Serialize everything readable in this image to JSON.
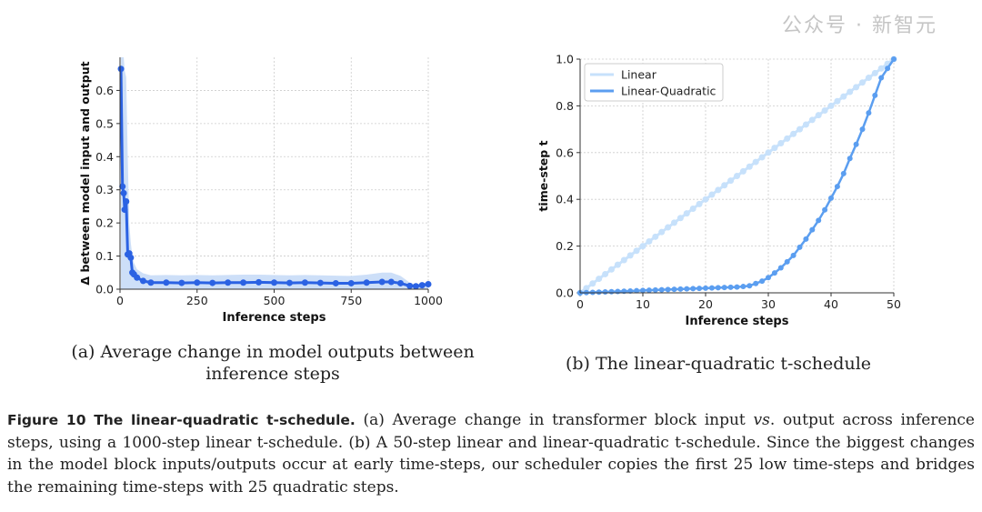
{
  "chart_data": [
    {
      "type": "line",
      "xlabel": "Inference steps",
      "ylabel": "Δ between model input and output",
      "xlim": [
        0,
        1000
      ],
      "ylim": [
        0,
        0.7
      ],
      "xticks": [
        "0",
        "250",
        "500",
        "750",
        "1000"
      ],
      "yticks": [
        "0.0",
        "0.1",
        "0.2",
        "0.3",
        "0.4",
        "0.5",
        "0.6"
      ],
      "grid": true,
      "color": "#2b62e3",
      "band_color": "#c8dbf7",
      "series": [
        {
          "x": [
            3,
            8,
            12,
            15,
            20,
            25,
            30,
            35,
            40,
            45,
            55,
            75,
            100,
            150,
            200,
            250,
            300,
            350,
            400,
            450,
            500,
            550,
            600,
            650,
            700,
            750,
            800,
            850,
            880,
            910,
            940,
            960,
            980,
            1000
          ],
          "y": [
            0.665,
            0.31,
            0.29,
            0.24,
            0.265,
            0.105,
            0.108,
            0.095,
            0.05,
            0.045,
            0.035,
            0.025,
            0.02,
            0.02,
            0.019,
            0.02,
            0.019,
            0.02,
            0.02,
            0.021,
            0.02,
            0.019,
            0.02,
            0.019,
            0.018,
            0.018,
            0.02,
            0.022,
            0.022,
            0.018,
            0.01,
            0.009,
            0.012,
            0.015
          ],
          "upper": [
            0.7,
            0.7,
            0.7,
            0.66,
            0.64,
            0.4,
            0.2,
            0.14,
            0.1,
            0.08,
            0.06,
            0.048,
            0.042,
            0.043,
            0.042,
            0.043,
            0.042,
            0.043,
            0.044,
            0.044,
            0.043,
            0.042,
            0.043,
            0.042,
            0.041,
            0.04,
            0.044,
            0.05,
            0.05,
            0.04,
            0.02,
            0.014,
            0.017,
            0.02
          ]
        }
      ]
    },
    {
      "type": "line",
      "xlabel": "Inference steps",
      "ylabel": "time-step t",
      "xlim": [
        0,
        50
      ],
      "ylim": [
        0,
        1
      ],
      "xticks": [
        "0",
        "10",
        "20",
        "30",
        "40",
        "50"
      ],
      "yticks": [
        "0.0",
        "0.2",
        "0.4",
        "0.6",
        "0.8",
        "1.0"
      ],
      "grid": true,
      "legend": "top-left",
      "series": [
        {
          "name": "Linear",
          "color": "#c7e1fb",
          "x": [
            0,
            1,
            2,
            3,
            4,
            5,
            6,
            7,
            8,
            9,
            10,
            11,
            12,
            13,
            14,
            15,
            16,
            17,
            18,
            19,
            20,
            21,
            22,
            23,
            24,
            25,
            26,
            27,
            28,
            29,
            30,
            31,
            32,
            33,
            34,
            35,
            36,
            37,
            38,
            39,
            40,
            41,
            42,
            43,
            44,
            45,
            46,
            47,
            48,
            49,
            50
          ],
          "y": [
            0,
            0.02,
            0.04,
            0.06,
            0.08,
            0.1,
            0.12,
            0.14,
            0.16,
            0.18,
            0.2,
            0.22,
            0.24,
            0.26,
            0.28,
            0.3,
            0.32,
            0.34,
            0.36,
            0.38,
            0.4,
            0.42,
            0.44,
            0.46,
            0.48,
            0.5,
            0.52,
            0.54,
            0.56,
            0.58,
            0.6,
            0.62,
            0.64,
            0.66,
            0.68,
            0.7,
            0.72,
            0.74,
            0.76,
            0.78,
            0.8,
            0.82,
            0.84,
            0.86,
            0.88,
            0.9,
            0.92,
            0.94,
            0.96,
            0.98,
            1.0
          ]
        },
        {
          "name": "Linear-Quadratic",
          "color": "#5b9ef0",
          "x": [
            0,
            1,
            2,
            3,
            4,
            5,
            6,
            7,
            8,
            9,
            10,
            11,
            12,
            13,
            14,
            15,
            16,
            17,
            18,
            19,
            20,
            21,
            22,
            23,
            24,
            25,
            26,
            27,
            28,
            29,
            30,
            31,
            32,
            33,
            34,
            35,
            36,
            37,
            38,
            39,
            40,
            41,
            42,
            43,
            44,
            45,
            46,
            47,
            48,
            49,
            50
          ],
          "y": [
            0,
            0.001,
            0.002,
            0.003,
            0.004,
            0.005,
            0.006,
            0.007,
            0.008,
            0.009,
            0.01,
            0.011,
            0.012,
            0.013,
            0.014,
            0.015,
            0.016,
            0.017,
            0.018,
            0.019,
            0.02,
            0.021,
            0.022,
            0.023,
            0.024,
            0.025,
            0.027,
            0.03,
            0.04,
            0.05,
            0.065,
            0.085,
            0.107,
            0.133,
            0.16,
            0.195,
            0.23,
            0.27,
            0.31,
            0.355,
            0.405,
            0.455,
            0.51,
            0.575,
            0.635,
            0.7,
            0.77,
            0.845,
            0.92,
            0.96,
            1.0
          ]
        }
      ]
    }
  ],
  "subcaptions": {
    "a": "(a) Average change in model outputs between inference steps",
    "b": "(b) The linear-quadratic t-schedule"
  },
  "caption": {
    "label": "Figure 10  The linear-quadratic t-schedule.",
    "text_1": " (a) Average change in transformer block input ",
    "vs": "vs",
    "text_2": ". output across inference steps, using a 1000-step linear t-schedule. (b) A 50-step linear and linear-quadratic t-schedule. Since the biggest changes in the model block inputs/outputs occur at early time-steps, our scheduler copies the first 25 low time-steps and bridges the remaining time-steps with 25 quadratic steps."
  },
  "watermark": "公众号 · 新智元"
}
